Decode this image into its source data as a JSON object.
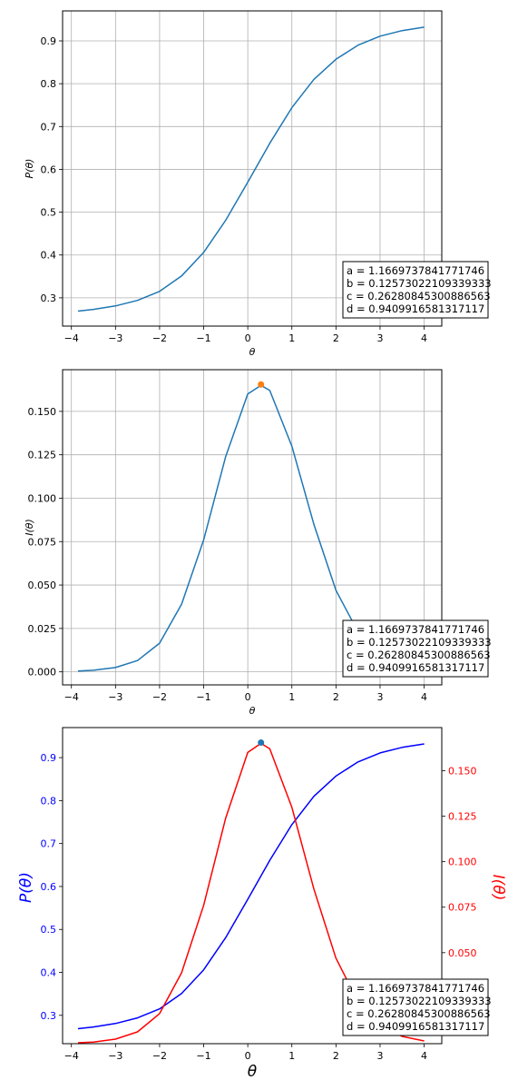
{
  "chart_data": [
    {
      "type": "line",
      "xlabel": "θ",
      "ylabel": "P(θ)",
      "xlim": [
        -4.2,
        4.4
      ],
      "ylim": [
        0.234,
        0.97
      ],
      "x_ticks": [
        -4,
        -3,
        -2,
        -1,
        0,
        1,
        2,
        3,
        4
      ],
      "x_tick_labels": [
        "−4",
        "−3",
        "−2",
        "−1",
        "0",
        "1",
        "2",
        "3",
        "4"
      ],
      "y_ticks": [
        0.3,
        0.4,
        0.5,
        0.6,
        0.7,
        0.8,
        0.9
      ],
      "y_tick_labels": [
        "0.3",
        "0.4",
        "0.5",
        "0.6",
        "0.7",
        "0.8",
        "0.9"
      ],
      "grid": true,
      "series": [
        {
          "color": "#1f77b4",
          "x": [
            -3.85,
            -3.5,
            -3.0,
            -2.5,
            -2.0,
            -1.5,
            -1.0,
            -0.5,
            0.0,
            0.5,
            1.0,
            1.5,
            2.0,
            2.5,
            3.0,
            3.5,
            4.0
          ],
          "y": [
            0.269,
            0.273,
            0.281,
            0.294,
            0.315,
            0.351,
            0.406,
            0.481,
            0.57,
            0.661,
            0.744,
            0.81,
            0.857,
            0.89,
            0.911,
            0.924,
            0.932
          ]
        }
      ],
      "annotation_lines": [
        "a = 1.1669737841771746",
        "b = 0.12573022109339333",
        "c = 0.26280845300886563",
        "d = 0.9409916581317117"
      ],
      "annotation_placement": "bottom-right"
    },
    {
      "type": "line",
      "xlabel": "θ",
      "ylabel": "I(θ)",
      "xlim": [
        -4.2,
        4.4
      ],
      "ylim": [
        -0.0075,
        0.174
      ],
      "x_ticks": [
        -4,
        -3,
        -2,
        -1,
        0,
        1,
        2,
        3,
        4
      ],
      "x_tick_labels": [
        "−4",
        "−3",
        "−2",
        "−1",
        "0",
        "1",
        "2",
        "3",
        "4"
      ],
      "y_ticks": [
        0.0,
        0.025,
        0.05,
        0.075,
        0.1,
        0.125,
        0.15
      ],
      "y_tick_labels": [
        "0.000",
        "0.025",
        "0.050",
        "0.075",
        "0.100",
        "0.125",
        "0.150"
      ],
      "grid": true,
      "series": [
        {
          "color": "#1f77b4",
          "x": [
            -3.85,
            -3.5,
            -3.0,
            -2.5,
            -2.0,
            -1.5,
            -1.0,
            -0.5,
            0.0,
            0.3,
            0.5,
            1.0,
            1.5,
            2.0,
            2.5,
            3.0,
            3.5,
            4.0
          ],
          "y": [
            0.0005,
            0.0009,
            0.0025,
            0.0065,
            0.0165,
            0.039,
            0.076,
            0.124,
            0.16,
            0.165,
            0.162,
            0.13,
            0.085,
            0.047,
            0.023,
            0.01,
            0.004,
            0.0015
          ]
        }
      ],
      "marker": {
        "x": 0.3,
        "y": 0.1655,
        "color": "#ff7f0e"
      },
      "annotation_lines": [
        "a = 1.1669737841771746",
        "b = 0.12573022109339333",
        "c = 0.26280845300886563",
        "d = 0.9409916581317117"
      ],
      "annotation_placement": "bottom-right"
    },
    {
      "type": "line",
      "xlabel": "θ",
      "ylabel": "P(θ)",
      "ylabel_right": "I(θ)",
      "xlim": [
        -4.2,
        4.4
      ],
      "ylim": [
        0.234,
        0.97
      ],
      "ylim_right": [
        0.0,
        0.1737
      ],
      "x_ticks": [
        -4,
        -3,
        -2,
        -1,
        0,
        1,
        2,
        3,
        4
      ],
      "x_tick_labels": [
        "−4",
        "−3",
        "−2",
        "−1",
        "0",
        "1",
        "2",
        "3",
        "4"
      ],
      "y_ticks": [
        0.3,
        0.4,
        0.5,
        0.6,
        0.7,
        0.8,
        0.9
      ],
      "y_tick_labels": [
        "0.3",
        "0.4",
        "0.5",
        "0.6",
        "0.7",
        "0.8",
        "0.9"
      ],
      "y_ticks_right": [
        0.05,
        0.075,
        0.1,
        0.125,
        0.15
      ],
      "y_tick_labels_right": [
        "0.050",
        "0.075",
        "0.100",
        "0.125",
        "0.150"
      ],
      "grid": false,
      "left_color": "#0000ff",
      "right_color": "#ff0000",
      "series": [
        {
          "color": "#0000ff",
          "axis": "left",
          "x": [
            -3.85,
            -3.5,
            -3.0,
            -2.5,
            -2.0,
            -1.5,
            -1.0,
            -0.5,
            0.0,
            0.5,
            1.0,
            1.5,
            2.0,
            2.5,
            3.0,
            3.5,
            4.0
          ],
          "y": [
            0.269,
            0.273,
            0.281,
            0.294,
            0.315,
            0.351,
            0.406,
            0.481,
            0.57,
            0.661,
            0.744,
            0.81,
            0.857,
            0.89,
            0.911,
            0.924,
            0.932
          ]
        },
        {
          "color": "#ff0000",
          "axis": "right",
          "x": [
            -3.85,
            -3.5,
            -3.0,
            -2.5,
            -2.0,
            -1.5,
            -1.0,
            -0.5,
            0.0,
            0.3,
            0.5,
            1.0,
            1.5,
            2.0,
            2.5,
            3.0,
            3.5,
            4.0
          ],
          "y": [
            0.0005,
            0.0009,
            0.0025,
            0.0065,
            0.0165,
            0.039,
            0.076,
            0.124,
            0.16,
            0.165,
            0.162,
            0.13,
            0.085,
            0.047,
            0.023,
            0.01,
            0.004,
            0.0015
          ]
        }
      ],
      "marker": {
        "x": 0.3,
        "y": 0.935,
        "color": "#1f77b4"
      },
      "annotation_lines": [
        "a = 1.1669737841771746",
        "b = 0.12573022109339333",
        "c = 0.26280845300886563",
        "d = 0.9409916581317117"
      ],
      "annotation_placement": "bottom-right"
    }
  ]
}
